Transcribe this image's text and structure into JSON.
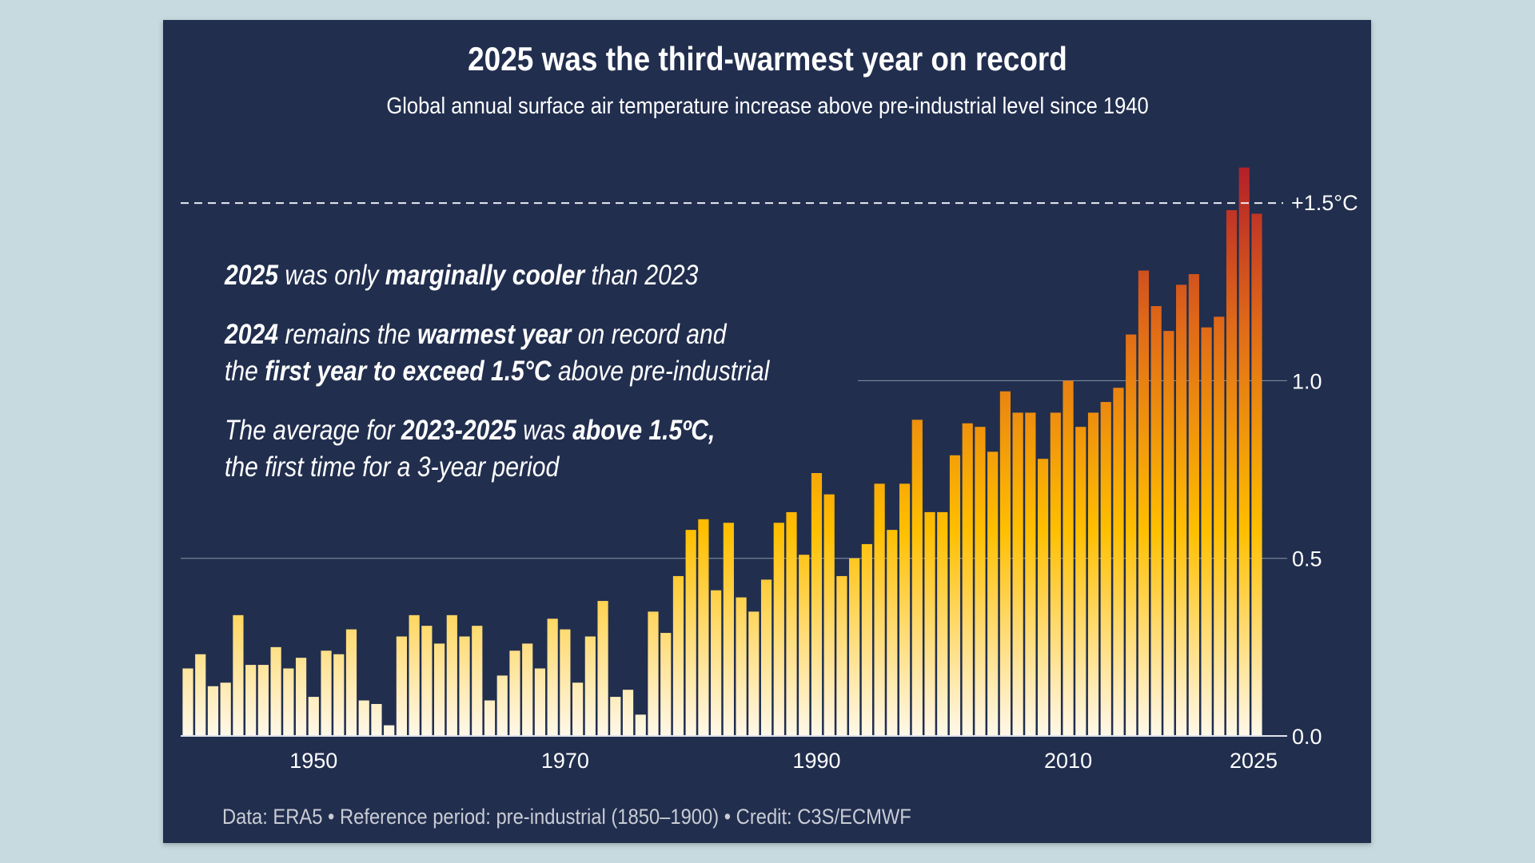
{
  "colors": {
    "page_background": "#c7dadf",
    "panel": "#212e4e",
    "bar_low": "#fff8ea",
    "bar_mid": "#ffbf00",
    "bar_high": "#e06a18",
    "bar_top": "#b31f2a"
  },
  "chart_data": {
    "type": "bar",
    "title": "2025 was the third-warmest year on record",
    "subtitle": "Global annual surface air temperature increase above pre-industrial level since 1940",
    "x": [
      1940,
      1941,
      1942,
      1943,
      1944,
      1945,
      1946,
      1947,
      1948,
      1949,
      1950,
      1951,
      1952,
      1953,
      1954,
      1955,
      1956,
      1957,
      1958,
      1959,
      1960,
      1961,
      1962,
      1963,
      1964,
      1965,
      1966,
      1967,
      1968,
      1969,
      1970,
      1971,
      1972,
      1973,
      1974,
      1975,
      1976,
      1977,
      1978,
      1979,
      1980,
      1981,
      1982,
      1983,
      1984,
      1985,
      1986,
      1987,
      1988,
      1989,
      1990,
      1991,
      1992,
      1993,
      1994,
      1995,
      1996,
      1997,
      1998,
      1999,
      2000,
      2001,
      2002,
      2003,
      2004,
      2005,
      2006,
      2007,
      2008,
      2009,
      2010,
      2011,
      2012,
      2013,
      2014,
      2015,
      2016,
      2017,
      2018,
      2019,
      2020,
      2021,
      2022,
      2023,
      2024,
      2025
    ],
    "values": [
      0.19,
      0.23,
      0.14,
      0.15,
      0.34,
      0.2,
      0.2,
      0.25,
      0.19,
      0.22,
      0.11,
      0.24,
      0.23,
      0.3,
      0.1,
      0.09,
      0.03,
      0.28,
      0.34,
      0.31,
      0.26,
      0.34,
      0.28,
      0.31,
      0.1,
      0.17,
      0.24,
      0.26,
      0.19,
      0.33,
      0.3,
      0.15,
      0.28,
      0.38,
      0.11,
      0.13,
      0.06,
      0.35,
      0.29,
      0.45,
      0.58,
      0.61,
      0.41,
      0.6,
      0.39,
      0.35,
      0.44,
      0.6,
      0.63,
      0.51,
      0.74,
      0.68,
      0.45,
      0.5,
      0.54,
      0.71,
      0.58,
      0.71,
      0.89,
      0.63,
      0.63,
      0.79,
      0.88,
      0.87,
      0.8,
      0.97,
      0.91,
      0.91,
      0.78,
      0.91,
      1.0,
      0.87,
      0.91,
      0.94,
      0.98,
      1.13,
      1.31,
      1.21,
      1.14,
      1.27,
      1.3,
      1.15,
      1.18,
      1.48,
      1.6,
      1.47
    ],
    "ylim": [
      0,
      1.6
    ],
    "y_ticks": [
      {
        "value": 0.0,
        "label": "0.0"
      },
      {
        "value": 0.5,
        "label": "0.5"
      },
      {
        "value": 1.0,
        "label": "1.0"
      }
    ],
    "x_ticks": [
      {
        "value": 1950,
        "label": "1950"
      },
      {
        "value": 1970,
        "label": "1970"
      },
      {
        "value": 1990,
        "label": "1990"
      },
      {
        "value": 2010,
        "label": "2010"
      },
      {
        "value": 2025,
        "label": "2025"
      }
    ],
    "reference_line": {
      "value": 1.5,
      "label": "+1.5°C",
      "style": "dashed"
    },
    "grid": "horizontal at 0.5 and 1.0",
    "y_axis_position": "right"
  },
  "annotations": [
    {
      "lines": [
        [
          {
            "t": "2025",
            "b": true
          },
          {
            "t": " was only ",
            "b": false
          },
          {
            "t": "marginally cooler",
            "b": true
          },
          {
            "t": " than 2023",
            "b": false
          }
        ]
      ]
    },
    {
      "lines": [
        [
          {
            "t": "2024",
            "b": true
          },
          {
            "t": " remains the ",
            "b": false
          },
          {
            "t": "warmest year",
            "b": true
          },
          {
            "t": " on record and",
            "b": false
          }
        ],
        [
          {
            "t": "the ",
            "b": false
          },
          {
            "t": "first year to exceed 1.5°C",
            "b": true
          },
          {
            "t": " above pre-industrial",
            "b": false
          }
        ]
      ]
    },
    {
      "lines": [
        [
          {
            "t": "The average for ",
            "b": false
          },
          {
            "t": "2023-2025",
            "b": true
          },
          {
            "t": " was ",
            "b": false
          },
          {
            "t": "above 1.5ºC,",
            "b": true
          }
        ],
        [
          {
            "t": "the first time for a 3-year period",
            "b": false
          }
        ]
      ]
    }
  ],
  "footnote": "Data: ERA5 • Reference period: pre-industrial (1850–1900) • Credit: C3S/ECMWF"
}
